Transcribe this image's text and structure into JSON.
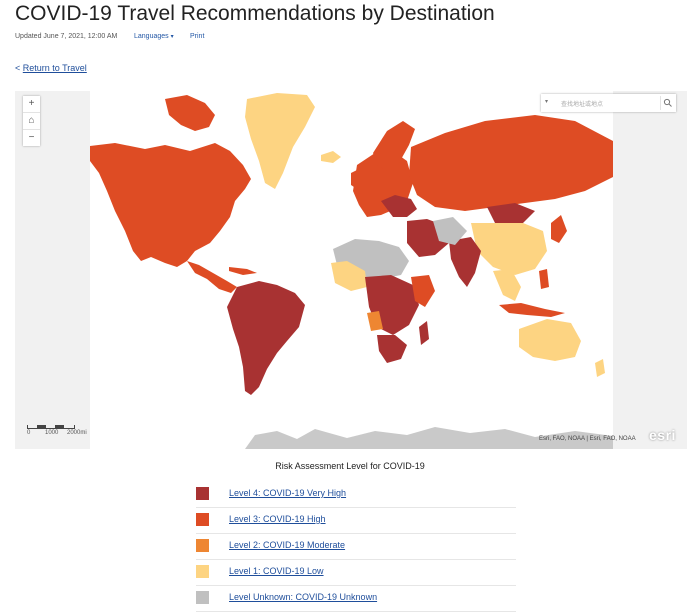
{
  "page": {
    "title": "COVID-19 Travel Recommendations by Destination",
    "updated": "Updated June 7, 2021, 12:00 AM",
    "languages_label": "Languages",
    "print_label": "Print",
    "back_link": "Return to Travel",
    "back_prefix": "<"
  },
  "map": {
    "zoom_in": "+",
    "home": "⌂",
    "zoom_out": "−",
    "search_placeholder": "查找地址或地点",
    "scale_labels": [
      "0",
      "1000",
      "2000mi"
    ],
    "attribution": "Esri, FAO, NOAA | Esri, FAO, NOAA",
    "logo": "esri",
    "colors": {
      "ocean": "#ffffff",
      "antarctica": "#c9c9c9",
      "level4": "#a83232",
      "level3": "#de4c24",
      "level2": "#ee8632",
      "level1": "#fdd482",
      "unknown": "#c0c0c0"
    }
  },
  "legend": {
    "title": "Risk Assessment Level for COVID-19",
    "items": [
      {
        "label": "Level 4: COVID-19 Very High",
        "color": "#a83232"
      },
      {
        "label": "Level 3: COVID-19 High",
        "color": "#de4c24"
      },
      {
        "label": "Level 2: COVID-19 Moderate",
        "color": "#ee8632"
      },
      {
        "label": "Level 1: COVID-19 Low",
        "color": "#fdd482"
      },
      {
        "label": "Level Unknown: COVID-19 Unknown",
        "color": "#c0c0c0"
      }
    ]
  }
}
